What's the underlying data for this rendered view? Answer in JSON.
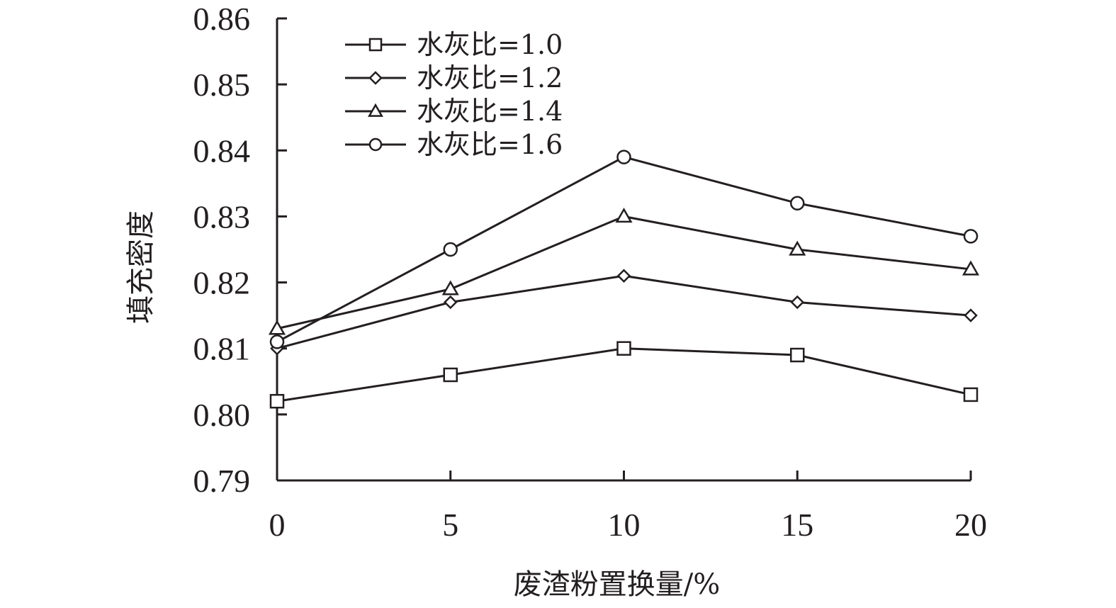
{
  "chart_data": {
    "type": "line",
    "title": "",
    "xlabel": "废渣粉置换量/%",
    "ylabel": "填充密度",
    "x": [
      0,
      5,
      10,
      15,
      20
    ],
    "xlim": [
      0,
      20
    ],
    "ylim": [
      0.79,
      0.86
    ],
    "x_ticks": [
      "0",
      "5",
      "10",
      "15",
      "20"
    ],
    "y_ticks": [
      "0.79",
      "0.80",
      "0.81",
      "0.82",
      "0.83",
      "0.84",
      "0.85",
      "0.86"
    ],
    "grid": false,
    "legend_position": "top-left",
    "series": [
      {
        "name": "水灰比=1.0",
        "marker": "square",
        "values": [
          0.802,
          0.806,
          0.81,
          0.809,
          0.803
        ]
      },
      {
        "name": "水灰比=1.2",
        "marker": "diamond",
        "values": [
          0.81,
          0.817,
          0.821,
          0.817,
          0.815
        ]
      },
      {
        "name": "水灰比=1.4",
        "marker": "triangle",
        "values": [
          0.813,
          0.819,
          0.83,
          0.825,
          0.822
        ]
      },
      {
        "name": "水灰比=1.6",
        "marker": "circle",
        "values": [
          0.811,
          0.825,
          0.839,
          0.832,
          0.827
        ]
      }
    ]
  }
}
